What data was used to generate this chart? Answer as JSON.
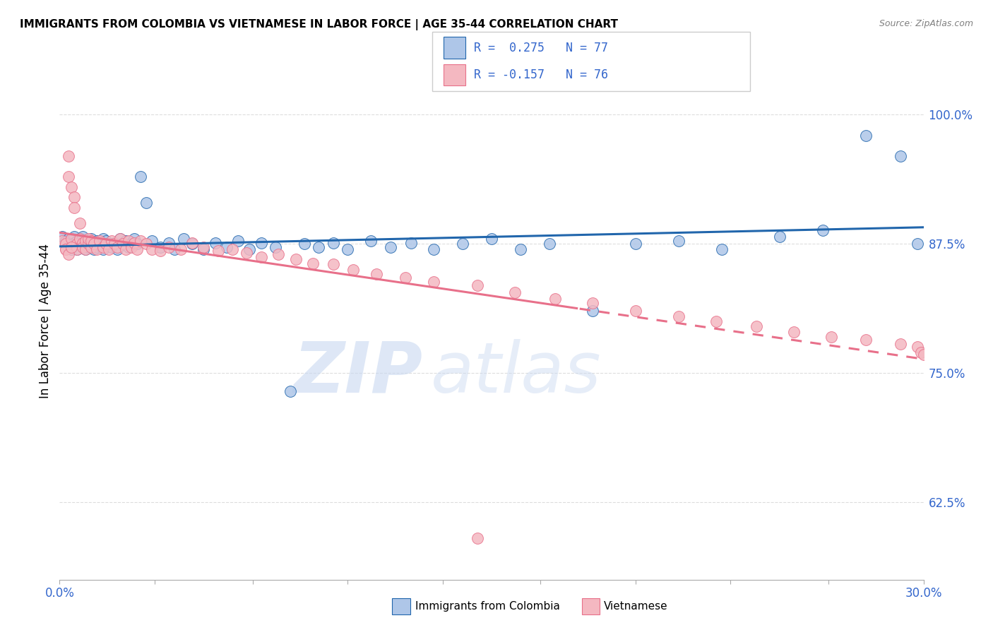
{
  "title": "IMMIGRANTS FROM COLOMBIA VS VIETNAMESE IN LABOR FORCE | AGE 35-44 CORRELATION CHART",
  "source": "Source: ZipAtlas.com",
  "ylabel": "In Labor Force | Age 35-44",
  "xlim": [
    0.0,
    0.3
  ],
  "ylim": [
    0.55,
    1.05
  ],
  "xticks": [
    0.0,
    0.033,
    0.067,
    0.1,
    0.133,
    0.167,
    0.2,
    0.233,
    0.267,
    0.3
  ],
  "xtick_show": [
    0.0,
    0.3
  ],
  "xtick_labels_show": [
    "0.0%",
    "30.0%"
  ],
  "yticks": [
    0.625,
    0.75,
    0.875,
    1.0
  ],
  "ytick_labels": [
    "62.5%",
    "75.0%",
    "87.5%",
    "100.0%"
  ],
  "legend_text_blue": "R =  0.275   N = 77",
  "legend_text_pink": "R = -0.157   N = 76",
  "legend_label_blue": "Immigrants from Colombia",
  "legend_label_pink": "Vietnamese",
  "blue_color": "#aec6e8",
  "pink_color": "#f4b8c1",
  "blue_line_color": "#2166ac",
  "pink_line_color": "#e8708a",
  "text_color": "#3366cc",
  "grid_color": "#dddddd",
  "watermark_zip": "ZIP",
  "watermark_atlas": "atlas",
  "blue_scatter_x": [
    0.001,
    0.002,
    0.002,
    0.003,
    0.003,
    0.004,
    0.004,
    0.005,
    0.005,
    0.006,
    0.006,
    0.007,
    0.007,
    0.008,
    0.008,
    0.009,
    0.009,
    0.01,
    0.01,
    0.011,
    0.011,
    0.012,
    0.012,
    0.013,
    0.013,
    0.014,
    0.015,
    0.015,
    0.016,
    0.017,
    0.018,
    0.019,
    0.02,
    0.021,
    0.022,
    0.023,
    0.024,
    0.025,
    0.026,
    0.027,
    0.028,
    0.03,
    0.032,
    0.035,
    0.038,
    0.04,
    0.043,
    0.046,
    0.05,
    0.054,
    0.058,
    0.062,
    0.066,
    0.07,
    0.075,
    0.08,
    0.085,
    0.09,
    0.095,
    0.1,
    0.108,
    0.115,
    0.122,
    0.13,
    0.14,
    0.15,
    0.16,
    0.17,
    0.185,
    0.2,
    0.215,
    0.23,
    0.25,
    0.265,
    0.28,
    0.292,
    0.298
  ],
  "blue_scatter_y": [
    0.882,
    0.878,
    0.875,
    0.88,
    0.872,
    0.875,
    0.87,
    0.882,
    0.876,
    0.878,
    0.87,
    0.875,
    0.88,
    0.876,
    0.882,
    0.87,
    0.875,
    0.878,
    0.872,
    0.88,
    0.875,
    0.876,
    0.87,
    0.878,
    0.872,
    0.875,
    0.88,
    0.87,
    0.878,
    0.875,
    0.872,
    0.876,
    0.87,
    0.88,
    0.875,
    0.878,
    0.872,
    0.876,
    0.88,
    0.875,
    0.94,
    0.915,
    0.878,
    0.872,
    0.876,
    0.87,
    0.88,
    0.875,
    0.87,
    0.876,
    0.872,
    0.878,
    0.87,
    0.876,
    0.872,
    0.732,
    0.875,
    0.872,
    0.876,
    0.87,
    0.878,
    0.872,
    0.876,
    0.87,
    0.875,
    0.88,
    0.87,
    0.875,
    0.81,
    0.875,
    0.878,
    0.87,
    0.882,
    0.888,
    0.98,
    0.96,
    0.875
  ],
  "pink_scatter_x": [
    0.001,
    0.002,
    0.002,
    0.003,
    0.003,
    0.004,
    0.004,
    0.005,
    0.005,
    0.006,
    0.006,
    0.007,
    0.007,
    0.008,
    0.008,
    0.009,
    0.009,
    0.01,
    0.01,
    0.011,
    0.011,
    0.012,
    0.013,
    0.014,
    0.015,
    0.016,
    0.017,
    0.018,
    0.019,
    0.02,
    0.021,
    0.022,
    0.023,
    0.024,
    0.025,
    0.026,
    0.027,
    0.028,
    0.03,
    0.032,
    0.035,
    0.038,
    0.042,
    0.046,
    0.05,
    0.055,
    0.06,
    0.065,
    0.07,
    0.076,
    0.082,
    0.088,
    0.095,
    0.102,
    0.11,
    0.12,
    0.13,
    0.145,
    0.158,
    0.172,
    0.185,
    0.2,
    0.215,
    0.228,
    0.242,
    0.255,
    0.268,
    0.28,
    0.292,
    0.298,
    0.299,
    0.3,
    0.145,
    0.002,
    0.003,
    0.004
  ],
  "pink_scatter_y": [
    0.878,
    0.875,
    0.87,
    0.96,
    0.94,
    0.88,
    0.93,
    0.92,
    0.91,
    0.875,
    0.87,
    0.895,
    0.88,
    0.876,
    0.872,
    0.878,
    0.87,
    0.875,
    0.88,
    0.872,
    0.878,
    0.875,
    0.87,
    0.878,
    0.872,
    0.875,
    0.87,
    0.878,
    0.875,
    0.872,
    0.88,
    0.875,
    0.87,
    0.878,
    0.872,
    0.876,
    0.87,
    0.878,
    0.875,
    0.87,
    0.868,
    0.872,
    0.87,
    0.876,
    0.872,
    0.868,
    0.87,
    0.866,
    0.862,
    0.865,
    0.86,
    0.856,
    0.855,
    0.85,
    0.846,
    0.842,
    0.838,
    0.835,
    0.828,
    0.822,
    0.818,
    0.81,
    0.805,
    0.8,
    0.795,
    0.79,
    0.785,
    0.782,
    0.778,
    0.775,
    0.77,
    0.768,
    0.59,
    0.87,
    0.865,
    0.872
  ]
}
